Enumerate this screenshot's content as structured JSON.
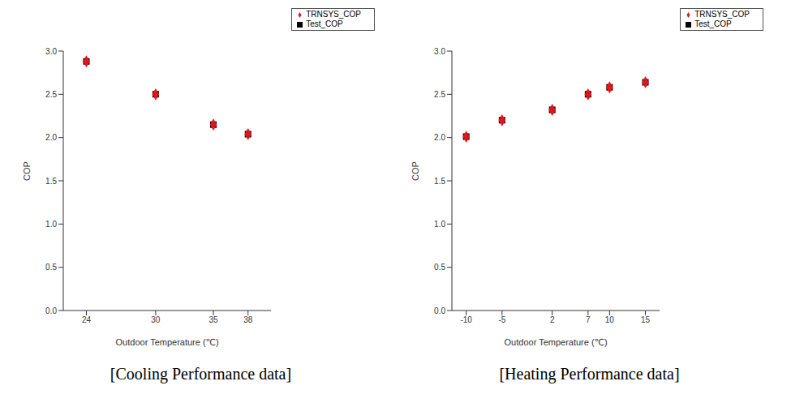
{
  "chart_data": [
    {
      "type": "scatter",
      "title": "[Cooling Performance data]",
      "x_label": "Outdoor Temperature (℃)",
      "y_label": "COP",
      "x": [
        24,
        30,
        35,
        38
      ],
      "xlim": [
        22,
        40
      ],
      "xticks": [
        24,
        30,
        35,
        38
      ],
      "ylim": [
        0,
        3
      ],
      "yticks": [
        {
          "value": 0,
          "label": "0.0"
        },
        0.5,
        {
          "value": 1,
          "label": "1.0"
        },
        1.5,
        {
          "value": 2,
          "label": "2.0"
        },
        2.5,
        {
          "value": 3,
          "label": "3.0"
        }
      ],
      "grid": false,
      "legend": "upper right",
      "series": [
        {
          "name": "Test_COP",
          "color": "#000000",
          "marker": "square",
          "values": [
            2.88,
            2.5,
            2.15,
            2.04
          ]
        },
        {
          "name": "TRNSYS_COP",
          "color": "#e3141c",
          "marker": "diamond",
          "values": [
            2.88,
            2.5,
            2.15,
            2.04
          ]
        }
      ]
    },
    {
      "type": "scatter",
      "title": "[Heating Performance data]",
      "x_label": "Outdoor Temperature (℃)",
      "y_label": "COP",
      "x": [
        -10,
        -5,
        2,
        7,
        10,
        15
      ],
      "xlim": [
        -12,
        17
      ],
      "xticks": [
        -10,
        -5,
        2,
        7,
        10,
        15
      ],
      "ylim": [
        0,
        3
      ],
      "yticks": [
        {
          "value": 0,
          "label": "0.0"
        },
        0.5,
        {
          "value": 1,
          "label": "1.0"
        },
        1.5,
        {
          "value": 2,
          "label": "2.0"
        },
        2.5,
        {
          "value": 3,
          "label": "3.0"
        }
      ],
      "grid": false,
      "legend": "upper right",
      "series": [
        {
          "name": "Test_COP",
          "color": "#000000",
          "marker": "square",
          "values": [
            2.01,
            2.2,
            2.32,
            2.5,
            2.58,
            2.64
          ]
        },
        {
          "name": "TRNSYS_COP",
          "color": "#e3141c",
          "marker": "diamond",
          "values": [
            2.01,
            2.2,
            2.32,
            2.5,
            2.58,
            2.64
          ]
        }
      ]
    }
  ]
}
